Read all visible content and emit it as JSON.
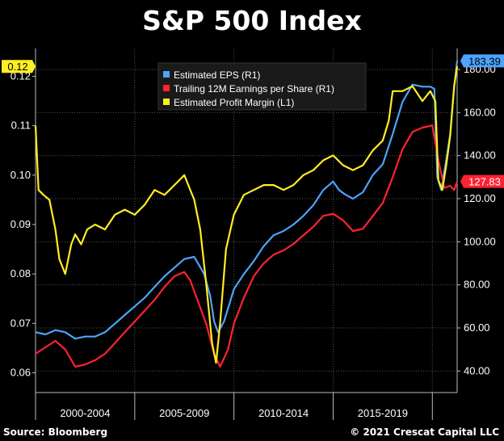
{
  "title": "S&P 500 Index",
  "footer": {
    "source": "Source: Bloomberg",
    "copyright": "© 2021 Crescat Capital LLC"
  },
  "colors": {
    "background": "#000000",
    "eps": "#4da3ff",
    "trailing": "#ff2233",
    "margin": "#ffee22"
  },
  "chart_data": {
    "type": "line",
    "title": "S&P 500 Index",
    "x_range": [
      2000.0,
      2021.25
    ],
    "x_ticks": [
      2000,
      2005,
      2010,
      2015,
      2020
    ],
    "x_tick_labels": [
      "2000-2004",
      "2005-2009",
      "2010-2014",
      "2015-2019"
    ],
    "left_axis": {
      "ylim": [
        0.056,
        0.124
      ],
      "ticks": [
        0.06,
        0.07,
        0.08,
        0.09,
        0.1,
        0.11,
        0.12
      ],
      "tick_labels": [
        "0.06",
        "0.07",
        "0.08",
        "0.09",
        "0.10",
        "0.11",
        "0.12"
      ]
    },
    "right_axis": {
      "ylim": [
        30,
        186
      ],
      "ticks": [
        40,
        60,
        80,
        100,
        120,
        140,
        160,
        180
      ],
      "tick_labels": [
        "40.00",
        "60.00",
        "80.00",
        "100.00",
        "120.00",
        "140.00",
        "160.00",
        "180.00"
      ]
    },
    "legend": {
      "placement": "top-center",
      "entries": [
        {
          "label": "Estimated EPS (R1)",
          "series": "eps"
        },
        {
          "label": "Trailing 12M Earnings per Share (R1)",
          "series": "trailing"
        },
        {
          "label": "Estimated Profit Margin (L1)",
          "series": "margin"
        }
      ]
    },
    "series": [
      {
        "name": "Estimated EPS (R1)",
        "key": "eps",
        "axis": "right",
        "last_value_label": "183.39",
        "points": [
          [
            2000.0,
            58
          ],
          [
            2000.5,
            57
          ],
          [
            2001.0,
            59
          ],
          [
            2001.5,
            58
          ],
          [
            2002.0,
            55
          ],
          [
            2002.5,
            56
          ],
          [
            2003.0,
            56
          ],
          [
            2003.5,
            58
          ],
          [
            2004.0,
            62
          ],
          [
            2004.5,
            66
          ],
          [
            2005.0,
            70
          ],
          [
            2005.5,
            74
          ],
          [
            2006.0,
            79
          ],
          [
            2006.5,
            84
          ],
          [
            2007.0,
            88
          ],
          [
            2007.5,
            92
          ],
          [
            2008.0,
            93
          ],
          [
            2008.5,
            85
          ],
          [
            2008.8,
            75
          ],
          [
            2009.0,
            63
          ],
          [
            2009.2,
            58
          ],
          [
            2009.5,
            63
          ],
          [
            2010.0,
            78
          ],
          [
            2010.5,
            85
          ],
          [
            2011.0,
            91
          ],
          [
            2011.5,
            98
          ],
          [
            2012.0,
            103
          ],
          [
            2012.5,
            105
          ],
          [
            2013.0,
            108
          ],
          [
            2013.5,
            112
          ],
          [
            2014.0,
            117
          ],
          [
            2014.5,
            124
          ],
          [
            2015.0,
            128
          ],
          [
            2015.3,
            124
          ],
          [
            2015.6,
            122
          ],
          [
            2016.0,
            120
          ],
          [
            2016.5,
            123
          ],
          [
            2017.0,
            131
          ],
          [
            2017.5,
            136
          ],
          [
            2018.0,
            150
          ],
          [
            2018.5,
            165
          ],
          [
            2019.0,
            173
          ],
          [
            2019.5,
            172
          ],
          [
            2019.9,
            172
          ],
          [
            2020.1,
            171
          ],
          [
            2020.25,
            130
          ],
          [
            2020.45,
            124
          ],
          [
            2020.7,
            138
          ],
          [
            2020.9,
            150
          ],
          [
            2021.1,
            172
          ],
          [
            2021.25,
            184
          ]
        ]
      },
      {
        "name": "Trailing 12M Earnings per Share (R1)",
        "key": "trailing",
        "axis": "right",
        "last_value_label": "127.83",
        "points": [
          [
            2000.0,
            48
          ],
          [
            2000.5,
            51
          ],
          [
            2001.0,
            54
          ],
          [
            2001.5,
            50
          ],
          [
            2002.0,
            42
          ],
          [
            2002.5,
            43
          ],
          [
            2003.0,
            45
          ],
          [
            2003.5,
            48
          ],
          [
            2004.0,
            53
          ],
          [
            2004.5,
            58
          ],
          [
            2005.0,
            63
          ],
          [
            2005.5,
            68
          ],
          [
            2006.0,
            73
          ],
          [
            2006.5,
            79
          ],
          [
            2007.0,
            84
          ],
          [
            2007.5,
            86
          ],
          [
            2007.8,
            82
          ],
          [
            2008.2,
            72
          ],
          [
            2008.6,
            62
          ],
          [
            2009.0,
            48
          ],
          [
            2009.3,
            42
          ],
          [
            2009.7,
            50
          ],
          [
            2010.0,
            62
          ],
          [
            2010.5,
            74
          ],
          [
            2011.0,
            84
          ],
          [
            2011.5,
            90
          ],
          [
            2012.0,
            94
          ],
          [
            2012.5,
            96
          ],
          [
            2013.0,
            99
          ],
          [
            2013.5,
            103
          ],
          [
            2014.0,
            107
          ],
          [
            2014.5,
            112
          ],
          [
            2015.0,
            113
          ],
          [
            2015.5,
            110
          ],
          [
            2016.0,
            105
          ],
          [
            2016.5,
            106
          ],
          [
            2017.0,
            112
          ],
          [
            2017.5,
            118
          ],
          [
            2018.0,
            130
          ],
          [
            2018.5,
            143
          ],
          [
            2019.0,
            151
          ],
          [
            2019.5,
            153
          ],
          [
            2020.0,
            154
          ],
          [
            2020.3,
            138
          ],
          [
            2020.6,
            125
          ],
          [
            2020.9,
            126
          ],
          [
            2021.1,
            124
          ],
          [
            2021.25,
            128
          ]
        ]
      },
      {
        "name": "Estimated Profit Margin (L1)",
        "key": "margin",
        "axis": "left",
        "last_value_label": "0.12",
        "points": [
          [
            2000.0,
            0.11
          ],
          [
            2000.15,
            0.097
          ],
          [
            2000.4,
            0.096
          ],
          [
            2000.7,
            0.095
          ],
          [
            2001.0,
            0.089
          ],
          [
            2001.2,
            0.083
          ],
          [
            2001.5,
            0.08
          ],
          [
            2001.8,
            0.086
          ],
          [
            2002.0,
            0.088
          ],
          [
            2002.3,
            0.086
          ],
          [
            2002.6,
            0.089
          ],
          [
            2003.0,
            0.09
          ],
          [
            2003.5,
            0.089
          ],
          [
            2004.0,
            0.092
          ],
          [
            2004.5,
            0.093
          ],
          [
            2005.0,
            0.092
          ],
          [
            2005.5,
            0.094
          ],
          [
            2006.0,
            0.097
          ],
          [
            2006.5,
            0.096
          ],
          [
            2007.0,
            0.098
          ],
          [
            2007.5,
            0.1
          ],
          [
            2008.0,
            0.095
          ],
          [
            2008.3,
            0.089
          ],
          [
            2008.6,
            0.078
          ],
          [
            2008.9,
            0.066
          ],
          [
            2009.1,
            0.062
          ],
          [
            2009.3,
            0.07
          ],
          [
            2009.6,
            0.085
          ],
          [
            2010.0,
            0.092
          ],
          [
            2010.5,
            0.096
          ],
          [
            2011.0,
            0.097
          ],
          [
            2011.5,
            0.098
          ],
          [
            2012.0,
            0.098
          ],
          [
            2012.5,
            0.097
          ],
          [
            2013.0,
            0.098
          ],
          [
            2013.5,
            0.1
          ],
          [
            2014.0,
            0.101
          ],
          [
            2014.5,
            0.103
          ],
          [
            2015.0,
            0.104
          ],
          [
            2015.5,
            0.102
          ],
          [
            2016.0,
            0.101
          ],
          [
            2016.5,
            0.102
          ],
          [
            2017.0,
            0.105
          ],
          [
            2017.5,
            0.107
          ],
          [
            2017.8,
            0.111
          ],
          [
            2018.0,
            0.117
          ],
          [
            2018.5,
            0.117
          ],
          [
            2019.0,
            0.118
          ],
          [
            2019.5,
            0.115
          ],
          [
            2019.9,
            0.117
          ],
          [
            2020.15,
            0.115
          ],
          [
            2020.3,
            0.099
          ],
          [
            2020.5,
            0.097
          ],
          [
            2020.7,
            0.102
          ],
          [
            2020.9,
            0.108
          ],
          [
            2021.1,
            0.118
          ],
          [
            2021.25,
            0.122
          ]
        ]
      }
    ]
  }
}
